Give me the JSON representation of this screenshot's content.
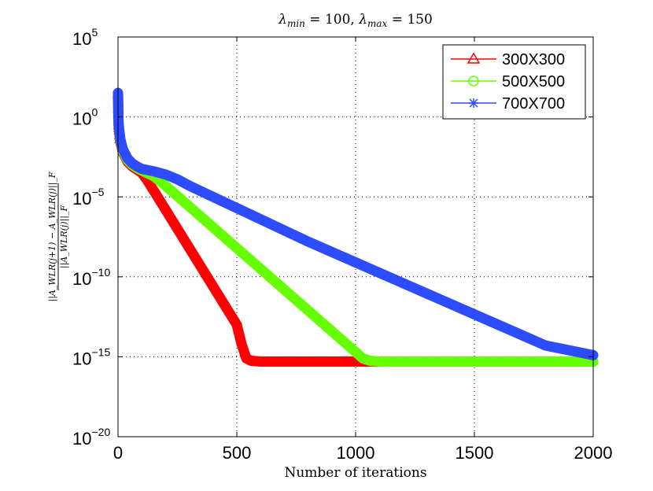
{
  "chart_data": {
    "type": "line",
    "title": "λ_min = 100, λ_max = 150",
    "title_parts": {
      "lambda": "λ",
      "min_sub": "min",
      "min_val": " = 100, ",
      "max_sub": "max",
      "max_val": " = 150"
    },
    "xlabel": "Number of iterations",
    "ylabel": "||A_WLR(j+1) − A_WLR(j)||_F / ||A_WLR(j)||_F",
    "ylabel_parts": {
      "numerator": "||A_WLR(j+1) − A_WLR(j)||_F",
      "denominator": "||A_WLR(j)||_F"
    },
    "xlim": [
      0,
      2000
    ],
    "ylim_exp": [
      -20,
      5
    ],
    "yscale": "log",
    "grid": true,
    "x_ticks": [
      "0",
      "500",
      "1000",
      "1500",
      "2000"
    ],
    "x_tick_values": [
      0,
      500,
      1000,
      1500,
      2000
    ],
    "y_ticks": [
      {
        "base": "10",
        "exp": "5",
        "value": 5
      },
      {
        "base": "10",
        "exp": "0",
        "value": 0
      },
      {
        "base": "10",
        "exp": "−5",
        "value": -5
      },
      {
        "base": "10",
        "exp": "−10",
        "value": -10
      },
      {
        "base": "10",
        "exp": "−15",
        "value": -15
      },
      {
        "base": "10",
        "exp": "−20",
        "value": -20
      }
    ],
    "legend_position": "top-right",
    "series": [
      {
        "name": "300X300",
        "color": "#ff0000",
        "marker": "triangle",
        "x": [
          0,
          2,
          5,
          10,
          20,
          40,
          60,
          80,
          100,
          120,
          150,
          200,
          250,
          300,
          350,
          400,
          450,
          500,
          520,
          540,
          560,
          600,
          800,
          1000,
          1200,
          1500,
          1800,
          2000
        ],
        "log10_y": [
          1.5,
          -0.5,
          -1.0,
          -1.6,
          -2.2,
          -2.8,
          -3.1,
          -3.3,
          -3.5,
          -3.9,
          -4.6,
          -5.8,
          -7.0,
          -8.2,
          -9.4,
          -10.6,
          -11.8,
          -13.0,
          -14.2,
          -15.1,
          -15.25,
          -15.3,
          -15.3,
          -15.3,
          -15.3,
          -15.3,
          -15.3,
          -15.3
        ]
      },
      {
        "name": "500X500",
        "color": "#66ff00",
        "marker": "circle",
        "x": [
          0,
          2,
          5,
          10,
          20,
          40,
          60,
          80,
          100,
          120,
          150,
          200,
          300,
          400,
          500,
          600,
          700,
          800,
          900,
          1000,
          1030,
          1060,
          1100,
          1200,
          1500,
          1800,
          2000
        ],
        "log10_y": [
          0.0,
          -0.3,
          -0.9,
          -1.5,
          -2.1,
          -2.7,
          -3.0,
          -3.2,
          -3.35,
          -3.5,
          -3.7,
          -4.3,
          -5.6,
          -6.9,
          -8.2,
          -9.5,
          -10.8,
          -12.1,
          -13.4,
          -14.7,
          -15.1,
          -15.25,
          -15.3,
          -15.3,
          -15.3,
          -15.3,
          -15.3
        ]
      },
      {
        "name": "700X700",
        "color": "#2e4cff",
        "marker": "star",
        "x": [
          0,
          2,
          5,
          10,
          20,
          40,
          60,
          80,
          100,
          150,
          200,
          250,
          300,
          400,
          600,
          800,
          1000,
          1200,
          1400,
          1600,
          1800,
          2000
        ],
        "log10_y": [
          1.5,
          -0.3,
          -0.8,
          -1.4,
          -2.0,
          -2.6,
          -2.9,
          -3.1,
          -3.25,
          -3.4,
          -3.6,
          -3.9,
          -4.3,
          -5.0,
          -6.4,
          -7.8,
          -9.1,
          -10.4,
          -11.7,
          -13.0,
          -14.3,
          -14.9
        ]
      }
    ]
  }
}
